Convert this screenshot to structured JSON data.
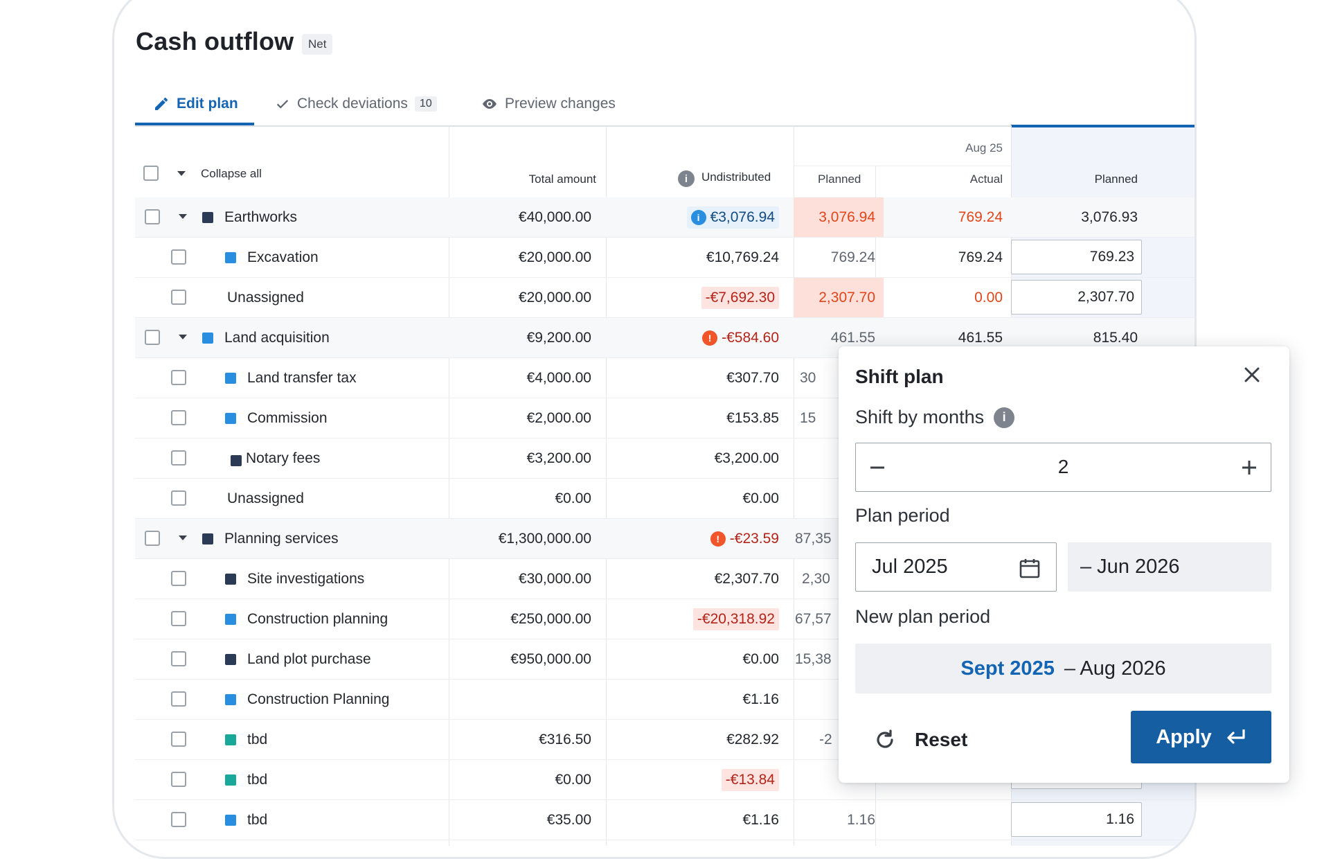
{
  "header": {
    "title": "Cash outflow",
    "badge": "Net"
  },
  "tabs": [
    {
      "label": "Edit plan",
      "icon": "pencil-icon"
    },
    {
      "label": "Check deviations",
      "icon": "check-icon",
      "count": "10"
    },
    {
      "label": "Preview changes",
      "icon": "eye-icon"
    }
  ],
  "table": {
    "collapse_all": "Collapse all",
    "col_total": "Total amount",
    "col_undistributed": "Undistributed",
    "month": "Aug 25",
    "col_planned": "Planned",
    "col_actual": "Actual",
    "col_planned_next": "Planned",
    "rows": [
      {
        "label": "Earthworks",
        "total": "€40,000.00",
        "undist": "€3,076.94",
        "planned": "3,076.94",
        "actual": "769.24",
        "next": "3,076.93"
      },
      {
        "label": "Excavation",
        "total": "€20,000.00",
        "undist": "€10,769.24",
        "planned": "769.24",
        "actual": "769.24",
        "next": "769.23"
      },
      {
        "label": "Unassigned",
        "total": "€20,000.00",
        "undist": "-€7,692.30",
        "planned": "2,307.70",
        "actual": "0.00",
        "next": "2,307.70"
      },
      {
        "label": "Land acquisition",
        "total": "€9,200.00",
        "undist": "-€584.60",
        "planned": "461.55",
        "actual": "461.55",
        "next": "815.40"
      },
      {
        "label": "Land transfer tax",
        "total": "€4,000.00",
        "undist": "€307.70",
        "planned": "30"
      },
      {
        "label": "Commission",
        "total": "€2,000.00",
        "undist": "€153.85",
        "planned": "15"
      },
      {
        "label": "Notary fees",
        "total": "€3,200.00",
        "undist": "€3,200.00"
      },
      {
        "label": "Unassigned",
        "total": "€0.00",
        "undist": "€0.00"
      },
      {
        "label": "Planning services",
        "total": "€1,300,000.00",
        "undist": "-€23.59",
        "planned": "87,35"
      },
      {
        "label": "Site investigations",
        "total": "€30,000.00",
        "undist": "€2,307.70",
        "planned": "2,30"
      },
      {
        "label": "Construction planning",
        "total": "€250,000.00",
        "undist": "-€20,318.92",
        "planned": "67,57"
      },
      {
        "label": "Land plot purchase",
        "total": "€950,000.00",
        "undist": "€0.00",
        "planned": "15,38"
      },
      {
        "label": "Construction Planning",
        "total": "",
        "undist": "€1.16"
      },
      {
        "label": "tbd",
        "total": "€316.50",
        "undist": "€282.92",
        "planned": "-2"
      },
      {
        "label": "tbd",
        "total": "€0.00",
        "undist": "-€13.84"
      },
      {
        "label": "tbd",
        "total": "€35.00",
        "undist": "€1.16",
        "planned": "1.16",
        "next": "1.16"
      }
    ]
  },
  "popover": {
    "title": "Shift plan",
    "shift_label": "Shift by months",
    "shift_value": "2",
    "plan_period_label": "Plan period",
    "plan_start": "Jul 2025",
    "plan_end": "– Jun 2026",
    "new_period_label": "New plan period",
    "new_start": "Sept 2025",
    "new_end": "– Aug 2026",
    "reset_label": "Reset",
    "apply_label": "Apply"
  },
  "colors": {
    "accent": "#1464b4",
    "negative": "#b42318",
    "warning": "#e2451a",
    "navy_square": "#2b3a55",
    "blue_square": "#2a8ee0",
    "teal_square": "#1aa89a"
  }
}
